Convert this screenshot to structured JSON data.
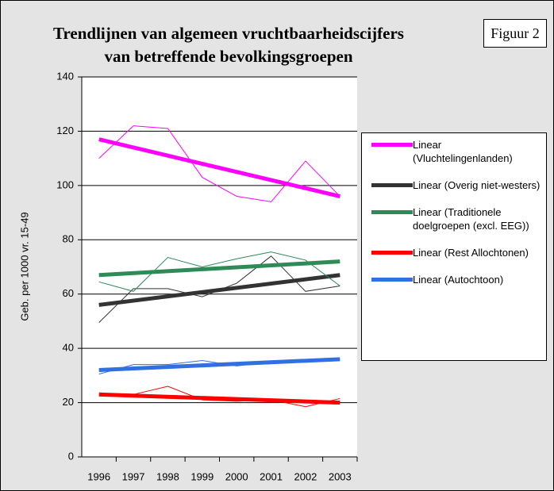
{
  "chart_data": {
    "type": "line",
    "title": "Trendlijnen van algemeen vruchtbaarheidscijfers van betreffende bevolkingsgroepen",
    "badge": "Figuur 2",
    "y_label": "Geb. per 1000  vr. 15-49",
    "categories": [
      "1996",
      "1997",
      "1998",
      "1999",
      "2000",
      "2001",
      "2002",
      "2003"
    ],
    "series": [
      {
        "name": "Linear (Vluchtelingenlanden)",
        "color": "#ff00ff",
        "values": [
          110,
          122,
          121,
          103,
          96,
          94,
          109,
          96
        ],
        "trend": [
          117,
          96
        ]
      },
      {
        "name": "Linear (Overig niet-westers)",
        "color": "#333333",
        "values": [
          49.5,
          62,
          62,
          59,
          64,
          74,
          61,
          63
        ],
        "trend": [
          56,
          67
        ]
      },
      {
        "name": "Linear (Traditionele doelgroepen (excl. EEG))",
        "color": "#2e8b57",
        "values": [
          64.5,
          61,
          73.5,
          70,
          73,
          75.5,
          72.5,
          63
        ],
        "trend": [
          67,
          72
        ]
      },
      {
        "name": "Linear (Rest Allochtonen)",
        "color": "#ff0000",
        "values": [
          22.5,
          23,
          26,
          21,
          20.5,
          21,
          18.5,
          21.5
        ],
        "trend": [
          23,
          20
        ]
      },
      {
        "name": "Linear (Autochtoon)",
        "color": "#3070e0",
        "values": [
          30.5,
          34,
          34,
          35.5,
          33.5,
          35,
          35.5,
          36
        ],
        "trend": [
          32,
          36
        ]
      }
    ],
    "ylim": [
      0,
      140
    ],
    "yticks": [
      0,
      20,
      40,
      60,
      80,
      100,
      120,
      140
    ],
    "grid": true
  }
}
